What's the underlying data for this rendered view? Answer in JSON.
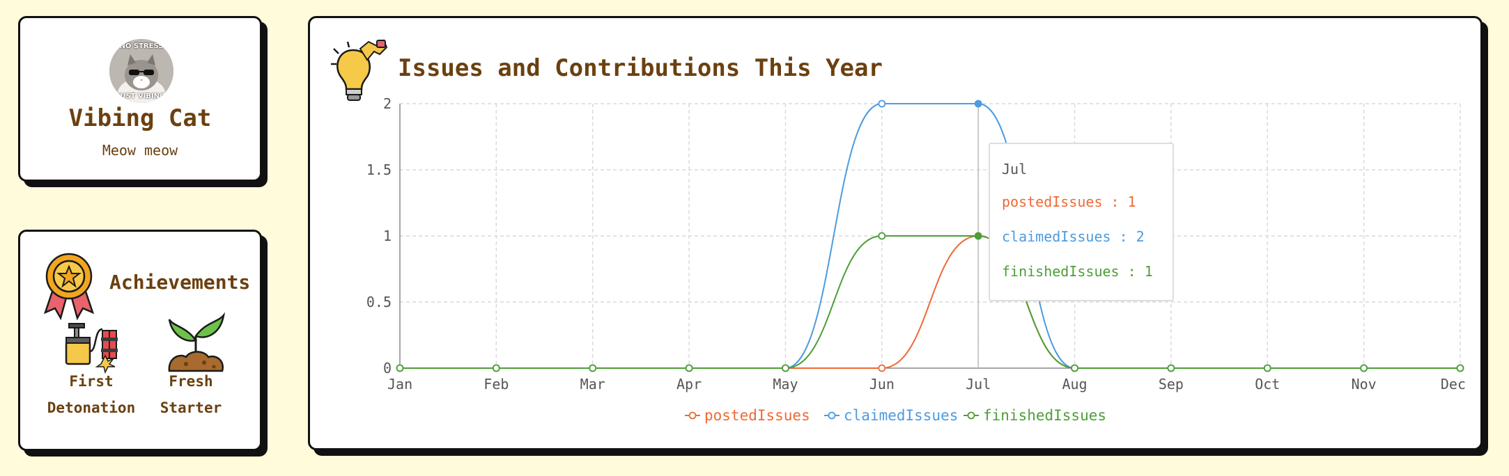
{
  "profile": {
    "name": "Vibing Cat",
    "subtitle": "Meow meow",
    "avatar_caption_top": "NO STRESS",
    "avatar_caption_bottom": "JUST VIBING"
  },
  "achievements": {
    "title": "Achievements",
    "badges": [
      {
        "label_line1": "First",
        "label_line2": "Detonation",
        "icon": "detonator-icon"
      },
      {
        "label_line1": "Fresh",
        "label_line2": "Starter",
        "icon": "sprout-icon"
      }
    ]
  },
  "chart_title": "Issues and Contributions This Year",
  "colors": {
    "text_brown": "#6b4010",
    "postedIssues": "#ee6a34",
    "claimedIssues": "#4b9be0",
    "finishedIssues": "#4d9e38",
    "background": "#fffbdb"
  },
  "chart_data": {
    "type": "line",
    "categories": [
      "Jan",
      "Feb",
      "Mar",
      "Apr",
      "May",
      "Jun",
      "Jul",
      "Aug",
      "Sep",
      "Oct",
      "Nov",
      "Dec"
    ],
    "series": [
      {
        "name": "postedIssues",
        "values": [
          0,
          0,
          0,
          0,
          0,
          0,
          1,
          0,
          0,
          0,
          0,
          0
        ]
      },
      {
        "name": "claimedIssues",
        "values": [
          0,
          0,
          0,
          0,
          0,
          2,
          2,
          0,
          0,
          0,
          0,
          0
        ]
      },
      {
        "name": "finishedIssues",
        "values": [
          0,
          0,
          0,
          0,
          0,
          1,
          1,
          0,
          0,
          0,
          0,
          0
        ]
      }
    ],
    "y_ticks": [
      "0",
      "0.5",
      "1",
      "1.5",
      "2"
    ],
    "ylim": [
      0,
      2
    ],
    "grid": true,
    "legend_position": "bottom-center",
    "tooltip": {
      "title": "Jul",
      "rows": [
        {
          "text": "postedIssues : 1"
        },
        {
          "text": "claimedIssues : 2"
        },
        {
          "text": "finishedIssues : 1"
        }
      ]
    }
  }
}
